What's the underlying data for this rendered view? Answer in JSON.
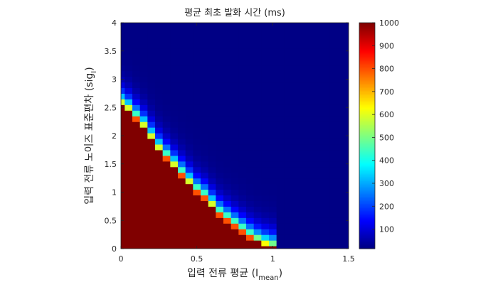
{
  "chart_data": {
    "type": "heatmap",
    "title": "평균 최초 발화 시간 (ms)",
    "xlabel": {
      "main": "입력 전류 평균 (I",
      "sub": "mean",
      "close": ")"
    },
    "ylabel": {
      "main": "입력 전류 노이즈 표준편차 (sig",
      "sub": "I",
      "close": ")"
    },
    "xlim": [
      0,
      1.5
    ],
    "ylim": [
      0,
      4
    ],
    "x_ticks": [
      {
        "value": 0,
        "label": "0"
      },
      {
        "value": 0.5,
        "label": "0.5"
      },
      {
        "value": 1,
        "label": "1"
      },
      {
        "value": 1.5,
        "label": "1.5"
      }
    ],
    "y_ticks": [
      {
        "value": 0,
        "label": "0"
      },
      {
        "value": 0.5,
        "label": "0.5"
      },
      {
        "value": 1,
        "label": "1"
      },
      {
        "value": 1.5,
        "label": "1.5"
      },
      {
        "value": 2,
        "label": "2"
      },
      {
        "value": 2.5,
        "label": "2.5"
      },
      {
        "value": 3,
        "label": "3"
      },
      {
        "value": 3.5,
        "label": "3.5"
      },
      {
        "value": 4,
        "label": "4"
      }
    ],
    "grid": false,
    "colormap": "jet",
    "colorbar": {
      "clim": [
        15,
        1000
      ],
      "ticks": [
        {
          "value": 100,
          "label": "100"
        },
        {
          "value": 200,
          "label": "200"
        },
        {
          "value": 300,
          "label": "300"
        },
        {
          "value": 400,
          "label": "400"
        },
        {
          "value": 500,
          "label": "500"
        },
        {
          "value": 600,
          "label": "600"
        },
        {
          "value": 700,
          "label": "700"
        },
        {
          "value": 800,
          "label": "800"
        },
        {
          "value": 900,
          "label": "900"
        },
        {
          "value": 1000,
          "label": "1000"
        }
      ]
    },
    "grid_shape": {
      "nx": 31,
      "ny": 41
    },
    "x_values": [
      0,
      0.05,
      0.1,
      0.15,
      0.2,
      0.25,
      0.3,
      0.35,
      0.4,
      0.45,
      0.5,
      0.55,
      0.6,
      0.65,
      0.7,
      0.75,
      0.8,
      0.85,
      0.9,
      0.95,
      1.0,
      1.05,
      1.1,
      1.15,
      1.2,
      1.25,
      1.3,
      1.35,
      1.4,
      1.45,
      1.5
    ],
    "y_values": [
      0,
      0.1,
      0.2,
      0.3,
      0.4,
      0.5,
      0.6,
      0.7,
      0.8,
      0.9,
      1.0,
      1.1,
      1.2,
      1.3,
      1.4,
      1.5,
      1.6,
      1.7,
      1.8,
      1.9,
      2.0,
      2.1,
      2.2,
      2.3,
      2.4,
      2.5,
      2.6,
      2.7,
      2.8,
      2.9,
      3.0,
      3.1,
      3.2,
      3.3,
      3.4,
      3.5,
      3.6,
      3.7,
      3.8,
      3.9,
      4.0
    ],
    "boundary_sigma_by_x": [
      2.55,
      2.45,
      2.3,
      2.15,
      1.95,
      1.75,
      1.6,
      1.45,
      1.3,
      1.15,
      1.0,
      0.9,
      0.75,
      0.6,
      0.5,
      0.4,
      0.3,
      0.2,
      0.12,
      0.06,
      0.02,
      0,
      0,
      0,
      0,
      0,
      0,
      0,
      0,
      0,
      0
    ],
    "subthreshold_value": 1000,
    "far_field_value": 20
  }
}
